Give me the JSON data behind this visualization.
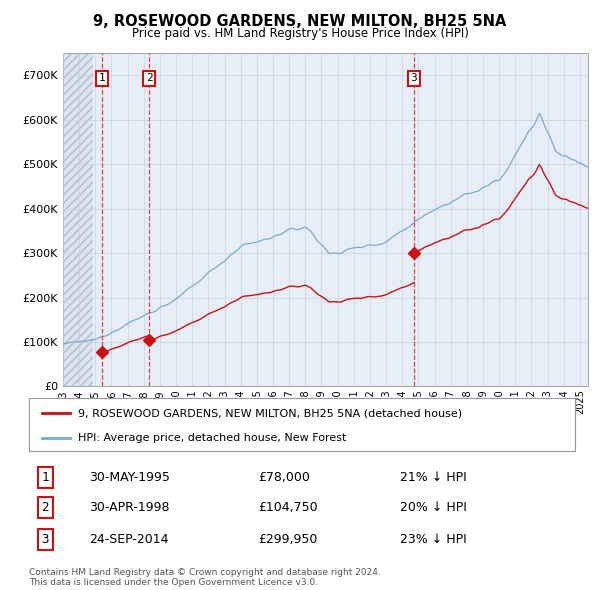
{
  "title": "9, ROSEWOOD GARDENS, NEW MILTON, BH25 5NA",
  "subtitle": "Price paid vs. HM Land Registry's House Price Index (HPI)",
  "ylim": [
    0,
    750000
  ],
  "yticks": [
    0,
    100000,
    200000,
    300000,
    400000,
    500000,
    600000,
    700000
  ],
  "background_color": "#ffffff",
  "plot_bg_color": "#e8eef8",
  "grid_color": "#c8d0e0",
  "sale_color": "#cc1111",
  "hpi_color": "#7aaad0",
  "transactions": [
    {
      "label": "1",
      "date": "30-MAY-1995",
      "price": 78000,
      "x": 1995.41,
      "pct": "21%",
      "dir": "↓"
    },
    {
      "label": "2",
      "date": "30-APR-1998",
      "price": 104750,
      "x": 1998.33,
      "pct": "20%",
      "dir": "↓"
    },
    {
      "label": "3",
      "date": "24-SEP-2014",
      "price": 299950,
      "x": 2014.73,
      "pct": "23%",
      "dir": "↓"
    }
  ],
  "footer": "Contains HM Land Registry data © Crown copyright and database right 2024.\nThis data is licensed under the Open Government Licence v3.0.",
  "legend_label1": "9, ROSEWOOD GARDENS, NEW MILTON, BH25 5NA (detached house)",
  "legend_label2": "HPI: Average price, detached house, New Forest"
}
